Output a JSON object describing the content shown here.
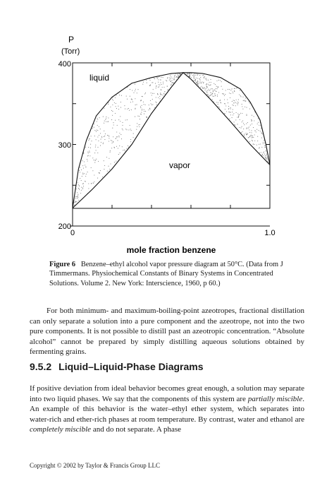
{
  "chart_data": {
    "type": "line",
    "ylabel": "P",
    "ylabel_unit": "(Torr)",
    "xlabel": "mole fraction benzene",
    "xlim": [
      0,
      1
    ],
    "ylim": [
      200,
      400
    ],
    "yticks": [
      "200",
      "300",
      "400"
    ],
    "xticks": [
      "0",
      "1.0"
    ],
    "region_labels": [
      "liquid",
      "vapor"
    ],
    "series": [
      {
        "x": [
          0,
          0.03,
          0.07,
          0.12,
          0.2,
          0.3,
          0.4,
          0.5,
          0.56,
          0.6,
          0.66,
          0.75,
          0.85,
          0.9,
          0.95,
          0.98,
          1.0
        ],
        "y": [
          222,
          270,
          305,
          335,
          358,
          375,
          382,
          387,
          388,
          388,
          387,
          382,
          368,
          352,
          330,
          300,
          275
        ]
      },
      {
        "x": [
          0,
          0.1,
          0.2,
          0.3,
          0.4,
          0.5,
          0.56,
          0.6,
          0.7,
          0.8,
          0.9,
          1.0
        ],
        "y": [
          222,
          245,
          270,
          300,
          338,
          370,
          388,
          380,
          355,
          328,
          300,
          275
        ]
      }
    ]
  },
  "caption": {
    "label": "Figure 6",
    "text": "Benzene–ethyl alcohol vapor pressure diagram at 50°C. (Data from J Timmermans. Physiochemical Constants of Binary Systems in Concentrated Solutions. Volume 2. New York: Interscience, 1960, p 60.)"
  },
  "paragraph1": "For both minimum- and maximum-boiling-point azeotropes, fractional distillation can only separate a solution into a pure component and the azeotrope, not into the two pure components. It is not possible to distill past an azeotropic concentration. “Absolute alcohol” cannot be prepared by simply distilling aqueous solutions obtained by fermenting grains.",
  "section": {
    "number": "9.5.2",
    "title": "Liquid–Liquid-Phase Diagrams"
  },
  "paragraph2": {
    "part1": "If positive deviation from ideal behavior becomes great enough, a solution may separate into two liquid phases. We say that the components of this system are ",
    "em1": "partially miscible",
    "part2": ". An example of this behavior is the water–ethyl ether system, which separates into water-rich and ether-rich phases at room temperature. By contrast, water and ethanol are ",
    "em2": "completely miscible",
    "part3": " and do not separate. A phase"
  },
  "footer": "Copyright © 2002 by Taylor & Francis Group LLC"
}
